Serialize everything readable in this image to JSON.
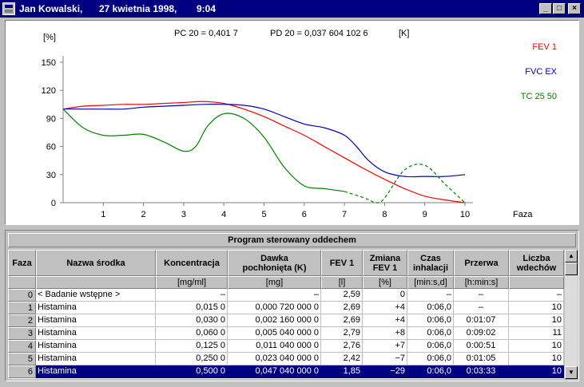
{
  "window": {
    "patient": "Jan Kowalski,",
    "date": "27 kwietnia 1998,",
    "time": "9:04",
    "minimize": "_",
    "maximize": "□",
    "close": "×"
  },
  "header": {
    "pc20": "PC 20  =  0,401 7",
    "pd20": "PD 20  =  0,037 604 102 6",
    "unit": "[K]"
  },
  "chart_data": {
    "type": "line",
    "ylabel": "[%]",
    "xlabel": "Faza",
    "xlim": [
      0,
      10
    ],
    "ylim": [
      0,
      150
    ],
    "yticks": [
      0,
      30,
      60,
      90,
      120,
      150
    ],
    "xticks": [
      1,
      2,
      3,
      4,
      5,
      6,
      7,
      8,
      9,
      10
    ],
    "legend_position": "right",
    "series": [
      {
        "name": "FEV 1",
        "color": "#ff0000",
        "x": [
          0,
          0.5,
          1,
          1.5,
          2,
          2.5,
          3,
          3.5,
          4,
          4.5,
          5,
          5.5,
          6,
          6.5,
          7,
          7.5,
          8,
          8.5,
          9,
          9.5,
          10
        ],
        "y": [
          100,
          103,
          104,
          105,
          105,
          106,
          107,
          108,
          106,
          100,
          92,
          82,
          72,
          60,
          48,
          36,
          25,
          15,
          7,
          3,
          0
        ]
      },
      {
        "name": "FVC EX",
        "color": "#0000b4",
        "x": [
          0,
          0.5,
          1,
          1.5,
          2,
          2.5,
          3,
          3.5,
          4,
          4.5,
          5,
          5.5,
          6,
          6.5,
          7,
          7.3,
          7.6,
          8,
          8.5,
          9,
          9.5,
          10
        ],
        "y": [
          100,
          100,
          100,
          100,
          102,
          103,
          104,
          105,
          105,
          104,
          100,
          92,
          84,
          80,
          72,
          60,
          45,
          33,
          28,
          28,
          28,
          30
        ]
      },
      {
        "name": "TC 25 50",
        "color": "#008000",
        "x": [
          0,
          0.5,
          1,
          1.5,
          2,
          2.5,
          3,
          3.3,
          3.6,
          4,
          4.5,
          5,
          5.5,
          6,
          6.5,
          7,
          7.5,
          7.8,
          8,
          8.5,
          9,
          9.5,
          10
        ],
        "y": [
          100,
          80,
          72,
          72,
          73,
          65,
          55,
          60,
          82,
          95,
          90,
          70,
          38,
          18,
          15,
          12,
          5,
          0,
          5,
          35,
          40,
          20,
          0
        ],
        "dashed_from_x": 7
      }
    ]
  },
  "table": {
    "title": "Program sterowany oddechem",
    "columns": [
      {
        "label": "Faza",
        "unit": ""
      },
      {
        "label": "Nazwa środka",
        "unit": ""
      },
      {
        "label": "Koncentracja",
        "unit": "[mg/ml]"
      },
      {
        "label": "Dawka\npochłonięta  (K)",
        "unit": "[mg]"
      },
      {
        "label": "FEV 1",
        "unit": "[l]"
      },
      {
        "label": "Zmiana\nFEV 1",
        "unit": "[%]"
      },
      {
        "label": "Czas\ninhalacji",
        "unit": "[min:s,d]"
      },
      {
        "label": "Przerwa",
        "unit": "[h:min:s]"
      },
      {
        "label": "Liczba\nwdechów",
        "unit": ""
      }
    ],
    "rows": [
      [
        "0",
        "< Badanie wstępne >",
        "–",
        "–",
        "2,59",
        "0",
        "–",
        "–",
        "–"
      ],
      [
        "1",
        "Histamina",
        "0,015 0",
        "0,000 720 000 0",
        "2,69",
        "+4",
        "0:06,0",
        "–",
        "10"
      ],
      [
        "2",
        "Histamina",
        "0,030 0",
        "0,002 160 000 0",
        "2,69",
        "+4",
        "0:06,0",
        "0:01:07",
        "10"
      ],
      [
        "3",
        "Histamina",
        "0,060 0",
        "0,005 040 000 0",
        "2,79",
        "+8",
        "0:06,0",
        "0:09:02",
        "11"
      ],
      [
        "4",
        "Histamina",
        "0,125 0",
        "0,011 040 000 0",
        "2,76",
        "+7",
        "0:06,0",
        "0:00:51",
        "10"
      ],
      [
        "5",
        "Histamina",
        "0,250 0",
        "0,023 040 000 0",
        "2,42",
        "−7",
        "0:06,0",
        "0:01:05",
        "10"
      ],
      [
        "6",
        "Histamina",
        "0,500 0",
        "0,047 040 000 0",
        "1,85",
        "−29",
        "0:06,0",
        "0:03:33",
        "10"
      ]
    ],
    "selected_row": 6
  }
}
